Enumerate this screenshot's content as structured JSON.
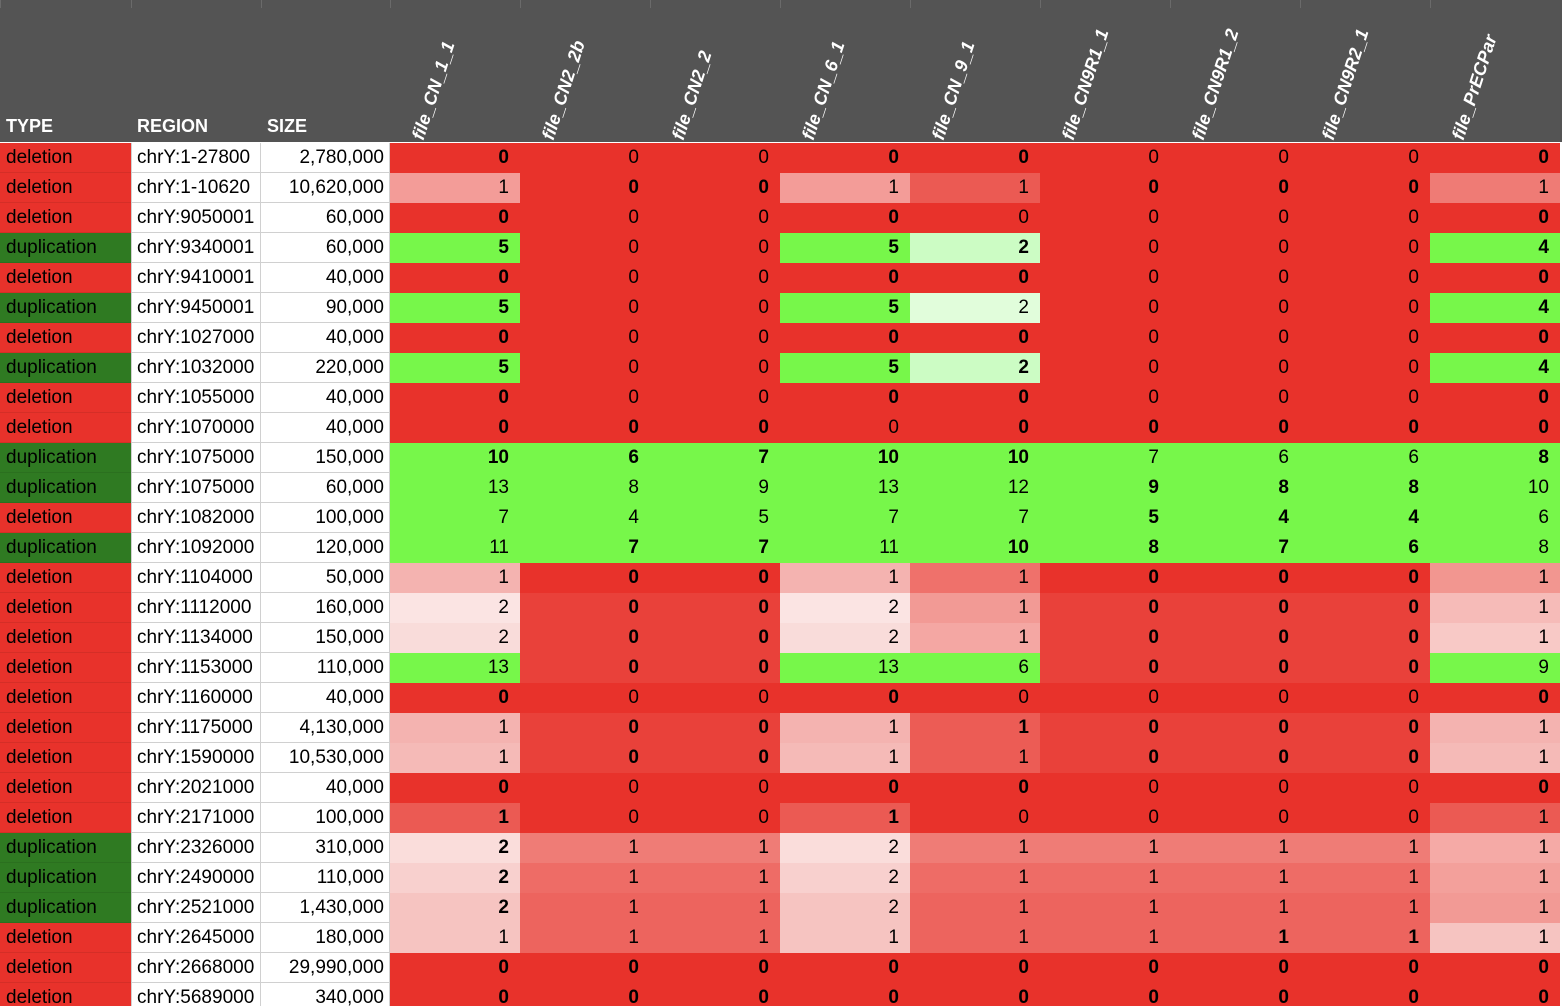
{
  "table": {
    "headers": [
      "TYPE",
      "REGION",
      "SIZE",
      "file_CN_1_1",
      "file_CN2_2b",
      "file_CN2_2",
      "file_CN_6_1",
      "file_CN_9_1",
      "file_CN9R1_1",
      "file_CN9R1_2",
      "file_CN9R2_1",
      "file_PrECPar"
    ],
    "type_fills": {
      "deletion": "#e8322b",
      "duplication": "#2f7a22"
    },
    "rows": [
      {
        "type": "deletion",
        "region": "chrY:1-27800",
        "size": "2,780,000",
        "values": [
          0,
          0,
          0,
          0,
          0,
          0,
          0,
          0,
          0
        ],
        "bold": [
          1,
          0,
          0,
          1,
          1,
          0,
          0,
          0,
          1
        ],
        "fills": [
          "#e8322b",
          "#e8322b",
          "#e8322b",
          "#e8322b",
          "#e8322b",
          "#e8322b",
          "#e8322b",
          "#e8322b",
          "#e8322b"
        ]
      },
      {
        "type": "deletion",
        "region": "chrY:1-10620",
        "size": "10,620,000",
        "values": [
          1,
          0,
          0,
          1,
          1,
          0,
          0,
          0,
          1
        ],
        "bold": [
          0,
          1,
          1,
          0,
          0,
          1,
          1,
          1,
          0
        ],
        "fills": [
          "#f39c98",
          "#e8322b",
          "#e8322b",
          "#f39c98",
          "#eb5a53",
          "#e8322b",
          "#e8322b",
          "#e8322b",
          "#ef7b75"
        ]
      },
      {
        "type": "deletion",
        "region": "chrY:9050001",
        "size": "60,000",
        "values": [
          0,
          0,
          0,
          0,
          0,
          0,
          0,
          0,
          0
        ],
        "bold": [
          1,
          0,
          0,
          1,
          0,
          0,
          0,
          0,
          1
        ],
        "fills": [
          "#e8322b",
          "#e8322b",
          "#e8322b",
          "#e8322b",
          "#e8322b",
          "#e8322b",
          "#e8322b",
          "#e8322b",
          "#e8322b"
        ]
      },
      {
        "type": "duplication",
        "region": "chrY:9340001",
        "size": "60,000",
        "values": [
          5,
          0,
          0,
          5,
          2,
          0,
          0,
          0,
          4
        ],
        "bold": [
          1,
          0,
          0,
          1,
          1,
          0,
          0,
          0,
          1
        ],
        "fills": [
          "#77f74a",
          "#e8322b",
          "#e8322b",
          "#77f74a",
          "#ccfcc4",
          "#e8322b",
          "#e8322b",
          "#e8322b",
          "#77f74a"
        ]
      },
      {
        "type": "deletion",
        "region": "chrY:9410001",
        "size": "40,000",
        "values": [
          0,
          0,
          0,
          0,
          0,
          0,
          0,
          0,
          0
        ],
        "bold": [
          1,
          0,
          0,
          1,
          1,
          0,
          0,
          0,
          1
        ],
        "fills": [
          "#e8322b",
          "#e8322b",
          "#e8322b",
          "#e8322b",
          "#e8322b",
          "#e8322b",
          "#e8322b",
          "#e8322b",
          "#e8322b"
        ]
      },
      {
        "type": "duplication",
        "region": "chrY:9450001",
        "size": "90,000",
        "values": [
          5,
          0,
          0,
          5,
          2,
          0,
          0,
          0,
          4
        ],
        "bold": [
          1,
          0,
          0,
          1,
          0,
          0,
          0,
          0,
          1
        ],
        "fills": [
          "#77f74a",
          "#e8322b",
          "#e8322b",
          "#77f74a",
          "#e1fddb",
          "#e8322b",
          "#e8322b",
          "#e8322b",
          "#77f74a"
        ]
      },
      {
        "type": "deletion",
        "region": "chrY:1027000",
        "size": "40,000",
        "values": [
          0,
          0,
          0,
          0,
          0,
          0,
          0,
          0,
          0
        ],
        "bold": [
          1,
          0,
          0,
          1,
          1,
          0,
          0,
          0,
          1
        ],
        "fills": [
          "#e8322b",
          "#e8322b",
          "#e8322b",
          "#e8322b",
          "#e8322b",
          "#e8322b",
          "#e8322b",
          "#e8322b",
          "#e8322b"
        ]
      },
      {
        "type": "duplication",
        "region": "chrY:1032000",
        "size": "220,000",
        "values": [
          5,
          0,
          0,
          5,
          2,
          0,
          0,
          0,
          4
        ],
        "bold": [
          1,
          0,
          0,
          1,
          1,
          0,
          0,
          0,
          1
        ],
        "fills": [
          "#77f74a",
          "#e8322b",
          "#e8322b",
          "#77f74a",
          "#ccfcc4",
          "#e8322b",
          "#e8322b",
          "#e8322b",
          "#77f74a"
        ]
      },
      {
        "type": "deletion",
        "region": "chrY:1055000",
        "size": "40,000",
        "values": [
          0,
          0,
          0,
          0,
          0,
          0,
          0,
          0,
          0
        ],
        "bold": [
          1,
          0,
          0,
          1,
          1,
          0,
          0,
          0,
          1
        ],
        "fills": [
          "#e8322b",
          "#e8322b",
          "#e8322b",
          "#e8322b",
          "#e8322b",
          "#e8322b",
          "#e8322b",
          "#e8322b",
          "#e8322b"
        ]
      },
      {
        "type": "deletion",
        "region": "chrY:1070000",
        "size": "40,000",
        "values": [
          0,
          0,
          0,
          0,
          0,
          0,
          0,
          0,
          0
        ],
        "bold": [
          1,
          1,
          1,
          0,
          1,
          1,
          1,
          1,
          1
        ],
        "fills": [
          "#e8322b",
          "#e8322b",
          "#e8322b",
          "#e8322b",
          "#e8322b",
          "#e8322b",
          "#e8322b",
          "#e8322b",
          "#e8322b"
        ]
      },
      {
        "type": "duplication",
        "region": "chrY:1075000",
        "size": "150,000",
        "values": [
          10,
          6,
          7,
          10,
          10,
          7,
          6,
          6,
          8
        ],
        "bold": [
          1,
          1,
          1,
          1,
          1,
          0,
          0,
          0,
          1
        ],
        "fills": [
          "#77f74a",
          "#77f74a",
          "#77f74a",
          "#77f74a",
          "#77f74a",
          "#77f74a",
          "#77f74a",
          "#77f74a",
          "#77f74a"
        ]
      },
      {
        "type": "duplication",
        "region": "chrY:1075000",
        "size": "60,000",
        "values": [
          13,
          8,
          9,
          13,
          12,
          9,
          8,
          8,
          10
        ],
        "bold": [
          0,
          0,
          0,
          0,
          0,
          1,
          1,
          1,
          0
        ],
        "fills": [
          "#77f74a",
          "#77f74a",
          "#77f74a",
          "#77f74a",
          "#77f74a",
          "#77f74a",
          "#77f74a",
          "#77f74a",
          "#77f74a"
        ]
      },
      {
        "type": "deletion",
        "region": "chrY:1082000",
        "size": "100,000",
        "values": [
          7,
          4,
          5,
          7,
          7,
          5,
          4,
          4,
          6
        ],
        "bold": [
          0,
          0,
          0,
          0,
          0,
          1,
          1,
          1,
          0
        ],
        "fills": [
          "#77f74a",
          "#77f74a",
          "#77f74a",
          "#77f74a",
          "#77f74a",
          "#77f74a",
          "#77f74a",
          "#77f74a",
          "#77f74a"
        ]
      },
      {
        "type": "duplication",
        "region": "chrY:1092000",
        "size": "120,000",
        "values": [
          11,
          7,
          7,
          11,
          10,
          8,
          7,
          6,
          8
        ],
        "bold": [
          0,
          1,
          1,
          0,
          1,
          1,
          1,
          1,
          0
        ],
        "fills": [
          "#77f74a",
          "#77f74a",
          "#77f74a",
          "#77f74a",
          "#77f74a",
          "#77f74a",
          "#77f74a",
          "#77f74a",
          "#77f74a"
        ]
      },
      {
        "type": "deletion",
        "region": "chrY:1104000",
        "size": "50,000",
        "values": [
          1,
          0,
          0,
          1,
          1,
          0,
          0,
          0,
          1
        ],
        "bold": [
          0,
          1,
          1,
          0,
          0,
          1,
          1,
          1,
          0
        ],
        "fills": [
          "#f4b3b0",
          "#e8322b",
          "#e8322b",
          "#f4b3b0",
          "#ef716b",
          "#e8322b",
          "#e8322b",
          "#e8322b",
          "#f29690"
        ]
      },
      {
        "type": "deletion",
        "region": "chrY:1112000",
        "size": "160,000",
        "values": [
          2,
          0,
          0,
          2,
          1,
          0,
          0,
          0,
          1
        ],
        "bold": [
          0,
          1,
          1,
          0,
          0,
          1,
          1,
          1,
          0
        ],
        "fills": [
          "#fbe4e3",
          "#e9413a",
          "#e9413a",
          "#fbe4e3",
          "#f29a95",
          "#e9413a",
          "#e9413a",
          "#e9413a",
          "#f6bbb8"
        ]
      },
      {
        "type": "deletion",
        "region": "chrY:1134000",
        "size": "150,000",
        "values": [
          2,
          0,
          0,
          2,
          1,
          0,
          0,
          0,
          1
        ],
        "bold": [
          0,
          1,
          1,
          0,
          0,
          1,
          1,
          1,
          0
        ],
        "fills": [
          "#f9dcda",
          "#e9413a",
          "#e9413a",
          "#f9dcda",
          "#f4a7a3",
          "#e9413a",
          "#e9413a",
          "#e9413a",
          "#f8c9c6"
        ]
      },
      {
        "type": "deletion",
        "region": "chrY:1153000",
        "size": "110,000",
        "values": [
          13,
          0,
          0,
          13,
          6,
          0,
          0,
          0,
          9
        ],
        "bold": [
          0,
          1,
          1,
          0,
          0,
          1,
          1,
          1,
          0
        ],
        "fills": [
          "#77f74a",
          "#e9413a",
          "#e9413a",
          "#77f74a",
          "#77f74a",
          "#e9413a",
          "#e9413a",
          "#e9413a",
          "#77f74a"
        ]
      },
      {
        "type": "deletion",
        "region": "chrY:1160000",
        "size": "40,000",
        "values": [
          0,
          0,
          0,
          0,
          0,
          0,
          0,
          0,
          0
        ],
        "bold": [
          1,
          0,
          0,
          1,
          0,
          0,
          0,
          0,
          1
        ],
        "fills": [
          "#e8322b",
          "#e8322b",
          "#e8322b",
          "#e8322b",
          "#e8322b",
          "#e8322b",
          "#e8322b",
          "#e8322b",
          "#e8322b"
        ]
      },
      {
        "type": "deletion",
        "region": "chrY:1175000",
        "size": "4,130,000",
        "values": [
          1,
          0,
          0,
          1,
          1,
          0,
          0,
          0,
          1
        ],
        "bold": [
          0,
          1,
          1,
          0,
          1,
          1,
          1,
          1,
          0
        ],
        "fills": [
          "#f4b3b0",
          "#e9413a",
          "#e9413a",
          "#f4b3b0",
          "#ec5c55",
          "#e9413a",
          "#e9413a",
          "#e9413a",
          "#f4b3b0"
        ]
      },
      {
        "type": "deletion",
        "region": "chrY:1590000",
        "size": "10,530,000",
        "values": [
          1,
          0,
          0,
          1,
          1,
          0,
          0,
          0,
          1
        ],
        "bold": [
          0,
          1,
          1,
          0,
          0,
          1,
          1,
          1,
          0
        ],
        "fills": [
          "#f5bab7",
          "#e9413a",
          "#e9413a",
          "#f5bab7",
          "#ec5c55",
          "#e9413a",
          "#e9413a",
          "#e9413a",
          "#f5bab7"
        ]
      },
      {
        "type": "deletion",
        "region": "chrY:2021000",
        "size": "40,000",
        "values": [
          0,
          0,
          0,
          0,
          0,
          0,
          0,
          0,
          0
        ],
        "bold": [
          1,
          0,
          0,
          1,
          1,
          0,
          0,
          0,
          1
        ],
        "fills": [
          "#e8322b",
          "#e8322b",
          "#e8322b",
          "#e8322b",
          "#e8322b",
          "#e8322b",
          "#e8322b",
          "#e8322b",
          "#e8322b"
        ]
      },
      {
        "type": "deletion",
        "region": "chrY:2171000",
        "size": "100,000",
        "values": [
          1,
          0,
          0,
          1,
          0,
          0,
          0,
          0,
          1
        ],
        "bold": [
          1,
          0,
          0,
          1,
          0,
          0,
          0,
          0,
          0
        ],
        "fills": [
          "#eb5a53",
          "#e8322b",
          "#e8322b",
          "#eb5a53",
          "#e8322b",
          "#e8322b",
          "#e8322b",
          "#e8322b",
          "#eb5a53"
        ]
      },
      {
        "type": "duplication",
        "region": "chrY:2326000",
        "size": "310,000",
        "values": [
          2,
          1,
          1,
          2,
          1,
          1,
          1,
          1,
          1
        ],
        "bold": [
          1,
          0,
          0,
          0,
          0,
          0,
          0,
          0,
          0
        ],
        "fills": [
          "#fadddb",
          "#ef7c76",
          "#ef7c76",
          "#fadddb",
          "#ef7c76",
          "#ef7c76",
          "#ef7c76",
          "#ef7c76",
          "#f5aaa6"
        ]
      },
      {
        "type": "duplication",
        "region": "chrY:2490000",
        "size": "110,000",
        "values": [
          2,
          1,
          1,
          2,
          1,
          1,
          1,
          1,
          1
        ],
        "bold": [
          1,
          0,
          0,
          0,
          0,
          0,
          0,
          0,
          0
        ],
        "fills": [
          "#f8d0ce",
          "#ee6c66",
          "#ee6c66",
          "#f8d0ce",
          "#ee6c66",
          "#ee6c66",
          "#ee6c66",
          "#ee6c66",
          "#f3a09b"
        ]
      },
      {
        "type": "duplication",
        "region": "chrY:2521000",
        "size": "1,430,000",
        "values": [
          2,
          1,
          1,
          2,
          1,
          1,
          1,
          1,
          1
        ],
        "bold": [
          1,
          0,
          0,
          0,
          0,
          0,
          0,
          0,
          0
        ],
        "fills": [
          "#f6c4c1",
          "#ed645e",
          "#ed645e",
          "#f6c4c1",
          "#ed645e",
          "#ed645e",
          "#ed645e",
          "#ed645e",
          "#f29a95"
        ]
      },
      {
        "type": "deletion",
        "region": "chrY:2645000",
        "size": "180,000",
        "values": [
          1,
          1,
          1,
          1,
          1,
          1,
          1,
          1,
          1
        ],
        "bold": [
          0,
          0,
          0,
          0,
          0,
          0,
          1,
          1,
          0
        ],
        "fills": [
          "#f6c4c1",
          "#ed645e",
          "#ed645e",
          "#f6c4c1",
          "#ed645e",
          "#ed645e",
          "#ed645e",
          "#ed645e",
          "#f6c4c1"
        ]
      },
      {
        "type": "deletion",
        "region": "chrY:2668000",
        "size": "29,990,000",
        "values": [
          0,
          0,
          0,
          0,
          0,
          0,
          0,
          0,
          0
        ],
        "bold": [
          1,
          1,
          1,
          1,
          1,
          1,
          1,
          1,
          1
        ],
        "fills": [
          "#e8322b",
          "#e8322b",
          "#e8322b",
          "#e8322b",
          "#e8322b",
          "#e8322b",
          "#e8322b",
          "#e8322b",
          "#e8322b"
        ]
      },
      {
        "type": "deletion",
        "region": "chrY:5689000",
        "size": "340,000",
        "values": [
          0,
          0,
          0,
          0,
          0,
          0,
          0,
          0,
          0
        ],
        "bold": [
          1,
          1,
          1,
          1,
          1,
          1,
          1,
          1,
          1
        ],
        "fills": [
          "#e8322b",
          "#e8322b",
          "#e8322b",
          "#e8322b",
          "#e8322b",
          "#e8322b",
          "#e8322b",
          "#e8322b",
          "#e8322b"
        ]
      }
    ]
  }
}
